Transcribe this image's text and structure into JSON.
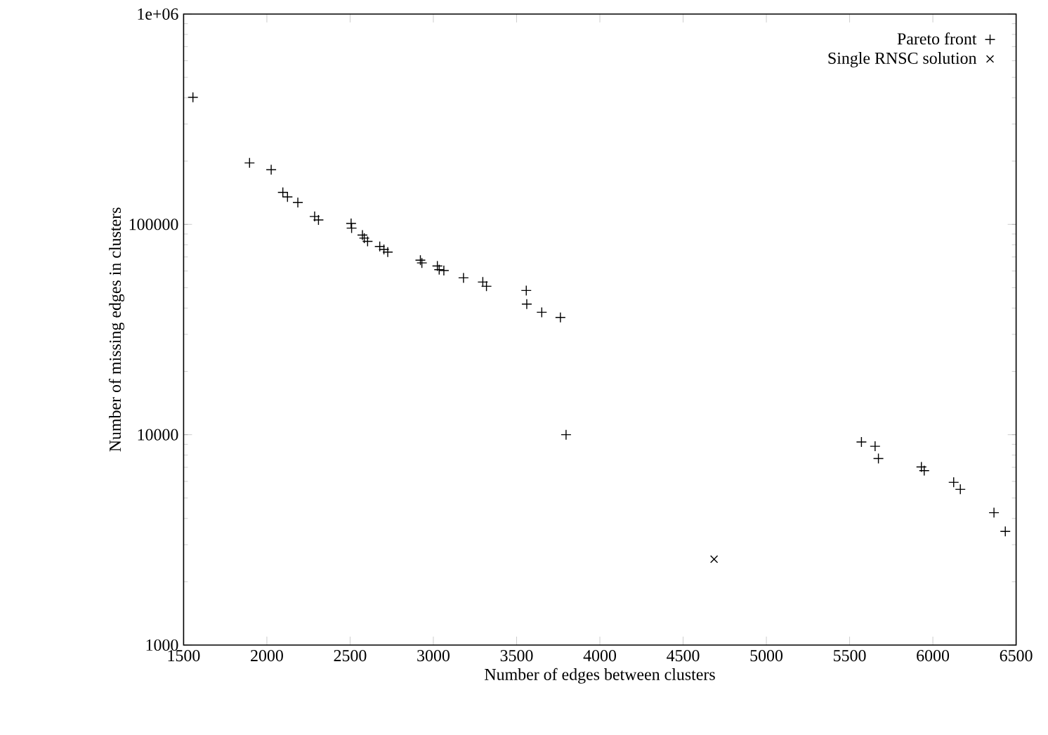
{
  "chart_data": {
    "type": "scatter",
    "xlabel": "Number of edges between clusters",
    "ylabel": "Number of missing edges in clusters",
    "log": "y",
    "legend": "top right",
    "grid": false,
    "xlim": [
      1500,
      6500
    ],
    "xticks": [
      1500,
      2000,
      2500,
      3000,
      3500,
      4000,
      4500,
      5000,
      5500,
      6000,
      6500
    ],
    "ylim": [
      1000,
      1000000
    ],
    "yticks": [
      1000,
      10000,
      100000,
      {
        "value": 1000000,
        "label": "1e+06"
      }
    ],
    "series": [
      {
        "name": "Pareto front",
        "color": "#000000",
        "marker": "plus",
        "x": [
          1556,
          1896,
          2026,
          2096,
          2124,
          2186,
          2287,
          2310,
          2506,
          2509,
          2574,
          2585,
          2605,
          2678,
          2703,
          2726,
          2922,
          2931,
          3024,
          3035,
          3063,
          3181,
          3297,
          3319,
          3558,
          3561,
          3651,
          3763,
          3797,
          5571,
          5653,
          5673,
          5931,
          5948,
          6125,
          6165,
          6367,
          6435
        ],
        "values": [
          402000,
          196000,
          182000,
          142000,
          135000,
          127000,
          109000,
          105000,
          101000,
          96000,
          89000,
          86000,
          83000,
          78500,
          76000,
          73800,
          67600,
          65600,
          63400,
          60900,
          60300,
          55700,
          53200,
          50800,
          48500,
          41800,
          38200,
          36100,
          10000,
          9230,
          8810,
          7710,
          7030,
          6750,
          5940,
          5500,
          4260,
          3470
        ]
      },
      {
        "name": "Single RNSC solution",
        "color": "#000000",
        "marker": "cross",
        "x": [
          4686
        ],
        "values": [
          2560
        ]
      }
    ]
  }
}
